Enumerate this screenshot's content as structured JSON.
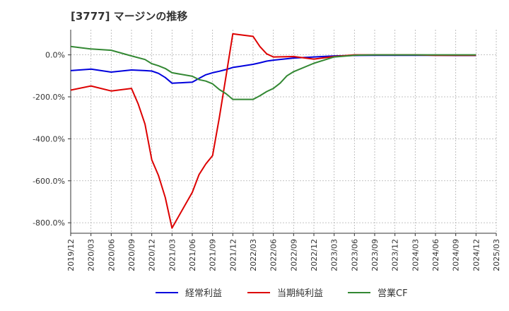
{
  "chart_data": {
    "type": "line",
    "title": "[3777]  マージンの推移",
    "xlabel": "",
    "ylabel": "",
    "ylim": [
      -850,
      120
    ],
    "yticks": [
      0,
      -200,
      -400,
      -600,
      -800
    ],
    "ytick_labels": [
      "0.0%",
      "-200.0%",
      "-400.0%",
      "-600.0%",
      "-800.0%"
    ],
    "xlim": [
      "2019-12",
      "2025-03"
    ],
    "xtick_labels": [
      "2019/12",
      "2020/03",
      "2020/06",
      "2020/09",
      "2020/12",
      "2021/03",
      "2021/06",
      "2021/09",
      "2021/12",
      "2022/03",
      "2022/06",
      "2022/09",
      "2022/12",
      "2023/03",
      "2023/06",
      "2023/09",
      "2023/12",
      "2024/03",
      "2024/06",
      "2024/09",
      "2024/12",
      "2025/03"
    ],
    "grid": true,
    "legend_position": "bottom",
    "series": [
      {
        "name": "経常利益",
        "color": "#0000dd",
        "x": [
          "2019-12",
          "2020-03",
          "2020-06",
          "2020-09",
          "2020-11",
          "2020-12",
          "2021-01",
          "2021-02",
          "2021-03",
          "2021-05",
          "2021-06",
          "2021-07",
          "2021-08",
          "2021-09",
          "2021-10",
          "2021-11",
          "2021-12",
          "2022-01",
          "2022-02",
          "2022-03",
          "2022-04",
          "2022-05",
          "2022-06",
          "2022-09",
          "2022-12",
          "2023-03",
          "2023-06",
          "2023-09",
          "2023-12",
          "2024-03",
          "2024-06",
          "2024-09",
          "2024-12"
        ],
        "values": [
          -75,
          -68,
          -82,
          -72,
          -75,
          -77,
          -88,
          -108,
          -135,
          -132,
          -130,
          -112,
          -95,
          -85,
          -78,
          -70,
          -60,
          -55,
          -50,
          -45,
          -38,
          -30,
          -25,
          -15,
          -10,
          -5,
          -3,
          -2,
          -2,
          -2,
          -2,
          -3,
          -3
        ]
      },
      {
        "name": "当期純利益",
        "color": "#dd0000",
        "x": [
          "2019-12",
          "2020-03",
          "2020-06",
          "2020-09",
          "2020-10",
          "2020-11",
          "2020-12",
          "2021-01",
          "2021-02",
          "2021-03",
          "2021-06",
          "2021-07",
          "2021-08",
          "2021-09",
          "2021-10",
          "2021-11",
          "2021-12",
          "2022-03",
          "2022-04",
          "2022-05",
          "2022-06",
          "2022-09",
          "2022-12",
          "2023-03",
          "2023-06",
          "2023-09",
          "2023-12",
          "2024-03",
          "2024-06",
          "2024-09",
          "2024-12"
        ],
        "values": [
          -168,
          -148,
          -172,
          -160,
          -235,
          -330,
          -500,
          -575,
          -680,
          -825,
          -655,
          -570,
          -520,
          -480,
          -300,
          -100,
          100,
          88,
          40,
          5,
          -10,
          -8,
          -20,
          -8,
          0,
          0,
          0,
          0,
          -2,
          -2,
          -2
        ]
      },
      {
        "name": "営業CF",
        "color": "#338833",
        "x": [
          "2019-12",
          "2020-03",
          "2020-06",
          "2020-09",
          "2020-11",
          "2020-12",
          "2021-01",
          "2021-02",
          "2021-03",
          "2021-06",
          "2021-07",
          "2021-08",
          "2021-09",
          "2021-10",
          "2021-11",
          "2021-12",
          "2022-01",
          "2022-02",
          "2022-03",
          "2022-04",
          "2022-05",
          "2022-06",
          "2022-07",
          "2022-08",
          "2022-09",
          "2022-12",
          "2023-03",
          "2023-06",
          "2023-09",
          "2023-12",
          "2024-03",
          "2024-06",
          "2024-09",
          "2024-12"
        ],
        "values": [
          40,
          28,
          22,
          -5,
          -22,
          -42,
          -52,
          -65,
          -85,
          -102,
          -118,
          -125,
          -138,
          -165,
          -185,
          -212,
          -212,
          -212,
          -212,
          -195,
          -175,
          -160,
          -135,
          -100,
          -80,
          -40,
          -10,
          -2,
          0,
          0,
          0,
          0,
          0,
          0
        ]
      }
    ]
  }
}
